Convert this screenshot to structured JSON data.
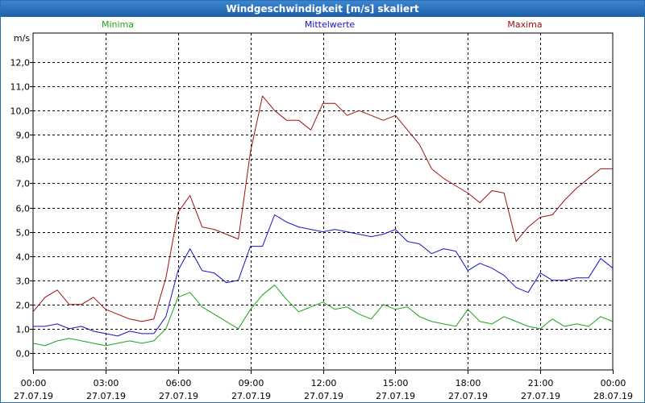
{
  "window": {
    "title": "Windgeschwindigkeit [m/s] skaliert"
  },
  "chart_data": {
    "type": "line",
    "title": "Windgeschwindigkeit [m/s] skaliert",
    "ylabel": "m/s",
    "xlabel": "",
    "ylim": [
      -0.7,
      13.2
    ],
    "xlim": [
      0,
      24
    ],
    "yticks": [
      0,
      1,
      2,
      3,
      4,
      5,
      6,
      7,
      8,
      9,
      10,
      11,
      12
    ],
    "ytick_labels": [
      "0,0",
      "1,0",
      "2,0",
      "3,0",
      "4,0",
      "5,0",
      "6,0",
      "7,0",
      "8,0",
      "9,0",
      "10,0",
      "11,0",
      "12,0"
    ],
    "xticks": [
      {
        "pos": 0,
        "time": "00:00",
        "date": "27.07.19"
      },
      {
        "pos": 3,
        "time": "03:00",
        "date": "27.07.19"
      },
      {
        "pos": 6,
        "time": "06:00",
        "date": "27.07.19"
      },
      {
        "pos": 9,
        "time": "09:00",
        "date": "27.07.19"
      },
      {
        "pos": 12,
        "time": "12:00",
        "date": "27.07.19"
      },
      {
        "pos": 15,
        "time": "15:00",
        "date": "27.07.19"
      },
      {
        "pos": 18,
        "time": "18:00",
        "date": "27.07.19"
      },
      {
        "pos": 21,
        "time": "21:00",
        "date": "27.07.19"
      },
      {
        "pos": 24,
        "time": "00:00",
        "date": "28.07.19"
      }
    ],
    "grid": true,
    "legend_position": "top",
    "x_hours": [
      0,
      0.5,
      1,
      1.5,
      2,
      2.5,
      3,
      3.5,
      4,
      4.5,
      5,
      5.5,
      6,
      6.5,
      7,
      7.5,
      8,
      8.5,
      9,
      9.5,
      10,
      10.5,
      11,
      11.5,
      12,
      12.5,
      13,
      13.5,
      14,
      14.5,
      15,
      15.5,
      16,
      16.5,
      17,
      17.5,
      18,
      18.5,
      19,
      19.5,
      20,
      20.5,
      21,
      21.5,
      22,
      22.5,
      23,
      23.5,
      24
    ],
    "series": [
      {
        "name": "Minima",
        "color": "#1aa51a",
        "values": [
          0.4,
          0.3,
          0.5,
          0.6,
          0.5,
          0.4,
          0.3,
          0.4,
          0.5,
          0.4,
          0.5,
          1.0,
          2.3,
          2.5,
          1.9,
          1.6,
          1.3,
          1.0,
          1.8,
          2.4,
          2.8,
          2.2,
          1.7,
          1.9,
          2.1,
          1.8,
          1.9,
          1.6,
          1.4,
          2.0,
          1.8,
          1.9,
          1.5,
          1.3,
          1.2,
          1.1,
          1.8,
          1.3,
          1.2,
          1.5,
          1.3,
          1.1,
          1.0,
          1.4,
          1.1,
          1.2,
          1.1,
          1.5,
          1.3
        ]
      },
      {
        "name": "Mittelwerte",
        "color": "#1515c8",
        "values": [
          1.1,
          1.1,
          1.2,
          1.0,
          1.1,
          0.9,
          0.8,
          0.7,
          0.9,
          0.8,
          0.8,
          1.5,
          3.4,
          4.3,
          3.4,
          3.3,
          2.9,
          3.0,
          4.4,
          4.4,
          5.7,
          5.4,
          5.2,
          5.1,
          5.0,
          5.1,
          5.0,
          4.9,
          4.8,
          4.9,
          5.1,
          4.6,
          4.5,
          4.1,
          4.3,
          4.2,
          3.4,
          3.7,
          3.5,
          3.2,
          2.7,
          2.5,
          3.3,
          3.0,
          3.0,
          3.1,
          3.1,
          3.9,
          3.5
        ]
      },
      {
        "name": "Maxima",
        "color": "#a01010",
        "values": [
          1.7,
          2.3,
          2.6,
          2.0,
          2.0,
          2.3,
          1.8,
          1.6,
          1.4,
          1.3,
          1.4,
          3.1,
          5.8,
          6.5,
          5.2,
          5.1,
          4.9,
          4.7,
          8.3,
          10.6,
          10.0,
          9.6,
          9.6,
          9.2,
          10.3,
          10.3,
          9.8,
          10.0,
          9.8,
          9.6,
          9.8,
          9.2,
          8.6,
          7.6,
          7.2,
          6.9,
          6.6,
          6.2,
          6.7,
          6.6,
          4.6,
          5.2,
          5.6,
          5.7,
          6.3,
          6.8,
          7.2,
          7.6,
          7.6
        ]
      }
    ]
  }
}
